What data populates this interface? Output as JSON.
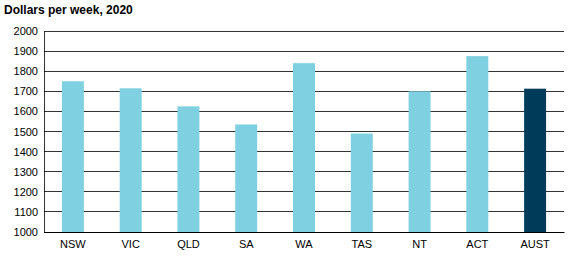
{
  "chart_data": {
    "type": "bar",
    "title": "Dollars per week, 2020",
    "categories": [
      "NSW",
      "VIC",
      "QLD",
      "SA",
      "WA",
      "TAS",
      "NT",
      "ACT",
      "AUST"
    ],
    "values": [
      1750,
      1715,
      1625,
      1535,
      1840,
      1490,
      1700,
      1875,
      1713
    ],
    "colors": [
      "#7fd0e1",
      "#7fd0e1",
      "#7fd0e1",
      "#7fd0e1",
      "#7fd0e1",
      "#7fd0e1",
      "#7fd0e1",
      "#7fd0e1",
      "#003c5a"
    ],
    "ylim": [
      1000,
      2000
    ],
    "yticks": [
      1000,
      1100,
      1200,
      1300,
      1400,
      1500,
      1600,
      1700,
      1800,
      1900,
      2000
    ],
    "grid": true
  }
}
